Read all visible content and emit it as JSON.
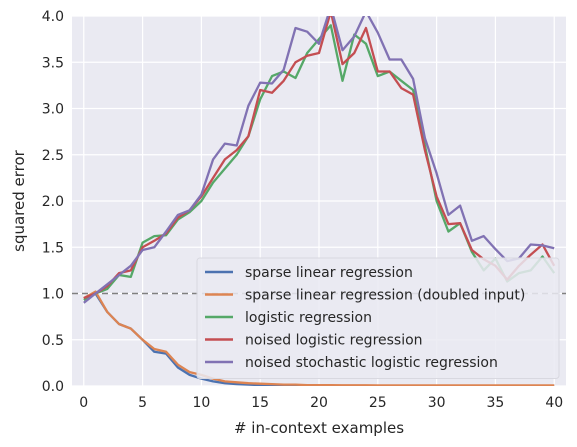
{
  "chart_data": {
    "type": "line",
    "xlabel": "# in-context examples",
    "ylabel": "squared error",
    "xlim": [
      -1,
      41
    ],
    "ylim": [
      0,
      4
    ],
    "xticks": [
      0,
      5,
      10,
      15,
      20,
      25,
      30,
      35,
      40
    ],
    "yticks": [
      0.0,
      0.5,
      1.0,
      1.5,
      2.0,
      2.5,
      3.0,
      3.5,
      4.0
    ],
    "grid": true,
    "legend_position": "bottom-right",
    "reference_line": {
      "y": 1.0,
      "style": "dashed",
      "color": "#808080"
    },
    "x": [
      0,
      1,
      2,
      3,
      4,
      5,
      6,
      7,
      8,
      9,
      10,
      11,
      12,
      13,
      14,
      15,
      16,
      17,
      18,
      19,
      20,
      21,
      22,
      23,
      24,
      25,
      26,
      27,
      28,
      29,
      30,
      31,
      32,
      33,
      34,
      35,
      36,
      37,
      38,
      39,
      40
    ],
    "series": [
      {
        "name": "sparse linear regression",
        "color": "#4c72b0",
        "values": [
          0.95,
          1.0,
          0.8,
          0.67,
          0.62,
          0.5,
          0.37,
          0.35,
          0.2,
          0.12,
          0.08,
          0.05,
          0.03,
          0.02,
          0.015,
          0.01,
          0.01,
          0.005,
          0.005,
          0.005,
          0.004,
          0.003,
          0.003,
          0.003,
          0.003,
          0.003,
          0.003,
          0.003,
          0.003,
          0.003,
          0.003,
          0.003,
          0.003,
          0.003,
          0.003,
          0.003,
          0.003,
          0.003,
          0.003,
          0.003,
          0.003
        ]
      },
      {
        "name": "sparse linear regression (doubled input)",
        "color": "#dd8452",
        "values": [
          0.95,
          1.02,
          0.8,
          0.67,
          0.62,
          0.5,
          0.4,
          0.37,
          0.23,
          0.15,
          0.12,
          0.08,
          0.05,
          0.04,
          0.03,
          0.025,
          0.02,
          0.015,
          0.015,
          0.01,
          0.01,
          0.01,
          0.008,
          0.008,
          0.008,
          0.007,
          0.007,
          0.007,
          0.007,
          0.007,
          0.007,
          0.007,
          0.007,
          0.006,
          0.006,
          0.006,
          0.006,
          0.006,
          0.006,
          0.006,
          0.006
        ]
      },
      {
        "name": "logistic regression",
        "color": "#55a868",
        "values": [
          0.93,
          1.0,
          1.05,
          1.2,
          1.18,
          1.55,
          1.62,
          1.63,
          1.8,
          1.88,
          2.0,
          2.2,
          2.35,
          2.5,
          2.7,
          3.1,
          3.35,
          3.4,
          3.33,
          3.6,
          3.75,
          3.9,
          3.3,
          3.8,
          3.7,
          3.35,
          3.4,
          3.3,
          3.2,
          2.6,
          2.0,
          1.67,
          1.76,
          1.45,
          1.25,
          1.38,
          1.13,
          1.22,
          1.25,
          1.4,
          1.22
        ]
      },
      {
        "name": "noised logistic regression",
        "color": "#c44e52",
        "values": [
          0.95,
          1.0,
          1.08,
          1.22,
          1.25,
          1.5,
          1.57,
          1.65,
          1.82,
          1.9,
          2.05,
          2.25,
          2.45,
          2.55,
          2.7,
          3.2,
          3.17,
          3.3,
          3.5,
          3.57,
          3.6,
          4.05,
          3.48,
          3.6,
          3.87,
          3.4,
          3.4,
          3.22,
          3.15,
          2.55,
          2.05,
          1.75,
          1.76,
          1.47,
          1.37,
          1.3,
          1.15,
          1.3,
          1.42,
          1.53,
          1.3
        ]
      },
      {
        "name": "noised stochastic logistic regression",
        "color": "#8172b3",
        "values": [
          0.9,
          1.0,
          1.1,
          1.2,
          1.3,
          1.47,
          1.5,
          1.67,
          1.85,
          1.9,
          2.07,
          2.45,
          2.62,
          2.6,
          3.03,
          3.28,
          3.27,
          3.42,
          3.87,
          3.83,
          3.7,
          4.1,
          3.63,
          3.78,
          4.05,
          3.82,
          3.53,
          3.53,
          3.32,
          2.68,
          2.3,
          1.85,
          1.95,
          1.57,
          1.62,
          1.48,
          1.35,
          1.38,
          1.53,
          1.52,
          1.49
        ]
      }
    ]
  }
}
